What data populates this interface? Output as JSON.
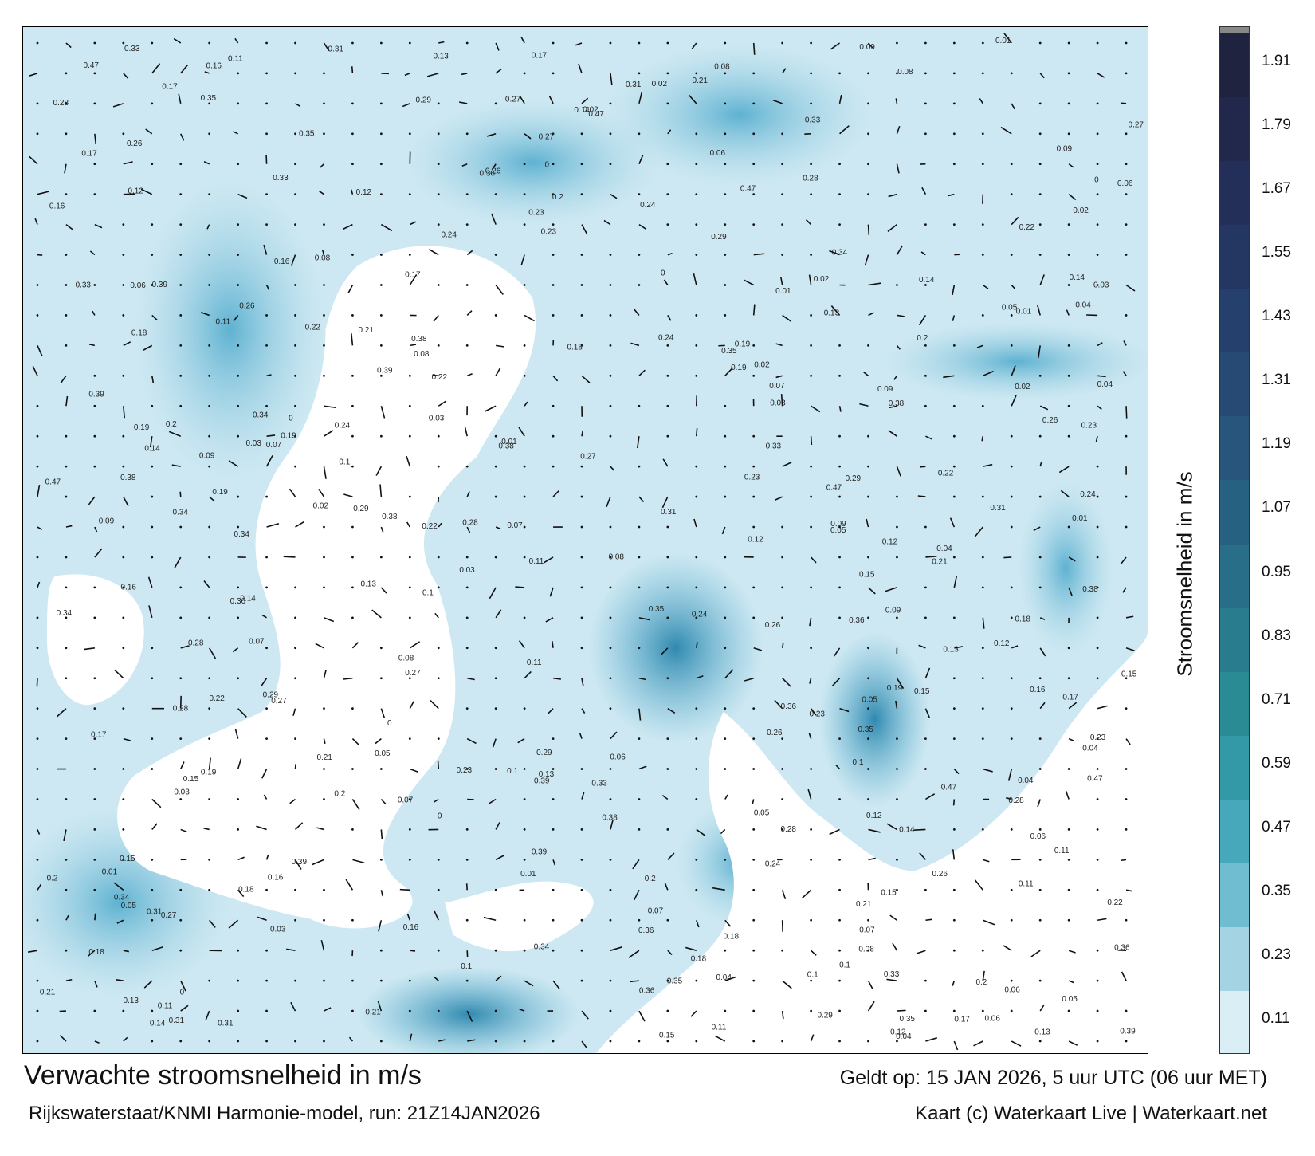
{
  "map": {
    "frame_name": "Stroomsnelheid Noordzee kaart",
    "colors": {
      "land": "#ffffff",
      "sea_light": "#d2ebf3",
      "sea_mid": "#7cc3dc",
      "sea_dark": "#2a8fb8",
      "arrow": "#111111"
    },
    "sample_labels": [
      "0.11",
      "0.07",
      "0.16",
      "0.09",
      "0.06",
      "0.12",
      "0.1",
      "0.13",
      "0.05",
      "0.29",
      "0.22",
      "0.31",
      "0.47",
      "0.35",
      "0.38",
      "0.24",
      "0.08",
      "0.04",
      "0.02",
      "0.03",
      "0.17",
      "0.19",
      "0.18",
      "0.21",
      "0.26",
      "0.33",
      "0.36",
      "0.15",
      "0.14",
      "0.01",
      "0",
      "0.23",
      "0.27",
      "0.28",
      "0.34",
      "0.39",
      "0.2"
    ]
  },
  "colorbar": {
    "label": "Stroomsnelheid in m/s",
    "ticks": [
      "1.91",
      "1.79",
      "1.67",
      "1.55",
      "1.43",
      "1.31",
      "1.19",
      "1.07",
      "0.95",
      "0.83",
      "0.71",
      "0.59",
      "0.47",
      "0.35",
      "0.23",
      "0.11"
    ],
    "colors": [
      "#20233f",
      "#22284c",
      "#232f58",
      "#243763",
      "#25406c",
      "#264a74",
      "#27557b",
      "#276181",
      "#286e88",
      "#287c8e",
      "#2a8b95",
      "#3499a6",
      "#48a8bb",
      "#70bcd0",
      "#a4d4e3",
      "#d9eef5"
    ],
    "top_color": "#888888"
  },
  "footer": {
    "title": "Verwachte stroomsnelheid in m/s",
    "subtitle": "Rijkswaterstaat/KNMI Harmonie-model, run: 21Z14JAN2026",
    "valid": "Geldt op: 15 JAN 2026, 5 uur UTC (06 uur MET)",
    "credit": "Kaart (c) Waterkaart Live | Waterkaart.net"
  }
}
